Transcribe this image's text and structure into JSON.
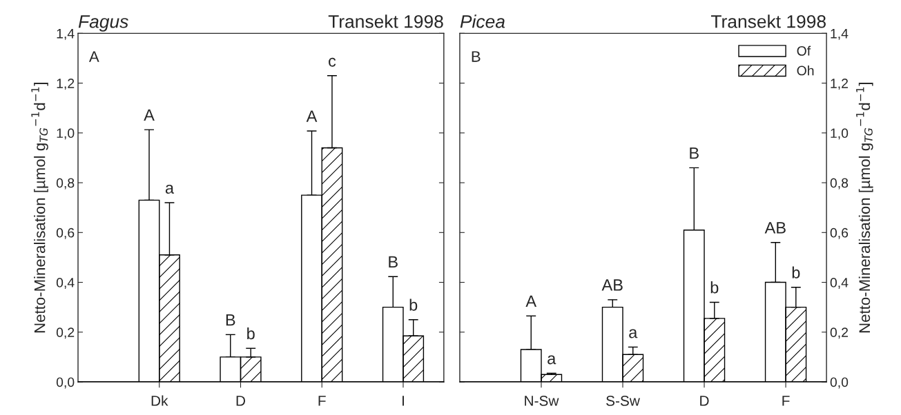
{
  "chart_data": [
    {
      "type": "bar",
      "title": "Fagus",
      "subtitle": "Transekt 1998",
      "ylabel": "Netto-Mineralisation [µmol g$_{TG}$$^{−1}$d$^{−1}$]",
      "categories": [
        "Dk",
        "D",
        "F",
        "I"
      ],
      "series": [
        {
          "color": "#ffffff",
          "values": [
            0.73,
            0.1,
            0.75,
            0.3
          ],
          "errors": [
            [
              0.73,
              1.013
            ],
            [
              0.1,
              0.19
            ],
            [
              0.75,
              1.008
            ],
            [
              0.3,
              0.423
            ]
          ]
        },
        {
          "color": "#000000",
          "values": [
            0.51,
            0.1,
            0.94,
            0.185
          ],
          "errors": [
            [
              0.51,
              0.72
            ],
            [
              0.1,
              0.135
            ],
            [
              0.94,
              1.23
            ],
            [
              0.185,
              0.25
            ]
          ]
        }
      ],
      "ylim": [
        0,
        1.4
      ],
      "yticks": [
        {
          "value": 0,
          "label": "0,0"
        },
        {
          "value": 0.2,
          "label": "0,2"
        },
        {
          "value": 0.4,
          "label": "0,4"
        },
        {
          "value": 0.6,
          "label": "0,6"
        },
        {
          "value": 0.8,
          "label": "0,8"
        },
        {
          "value": 1.0,
          "label": "1,0"
        },
        {
          "value": 1.2,
          "label": "1,2"
        },
        {
          "value": 1.4,
          "label": "1,4"
        }
      ],
      "annotations": [
        "A",
        "A",
        "a",
        "B",
        "b",
        "A",
        "c",
        "B",
        "b"
      ],
      "grid": false,
      "legend": false
    },
    {
      "type": "bar",
      "title": "Picea",
      "subtitle": "Transekt 1998",
      "ylabel": "Netto-Mineralisation [µmol g$_{TG}$$^{−1}$d$^{−1}$]",
      "categories": [
        "N-Sw",
        "S-Sw",
        "D",
        "F"
      ],
      "series": [
        {
          "name": "Of",
          "color": "#ffffff",
          "values": [
            0.13,
            0.3,
            0.61,
            0.4
          ],
          "errors": [
            [
              0.13,
              0.265
            ],
            [
              0.3,
              0.33
            ],
            [
              0.61,
              0.86
            ],
            [
              0.4,
              0.56
            ]
          ]
        },
        {
          "name": "Oh",
          "color": "#000000",
          "values": [
            0.03,
            0.11,
            0.255,
            0.3
          ],
          "errors": [
            [
              0.03,
              0.035
            ],
            [
              0.11,
              0.14
            ],
            [
              0.255,
              0.32
            ],
            [
              0.3,
              0.38
            ]
          ]
        }
      ],
      "ylim": [
        0,
        1.4
      ],
      "yticks": [
        {
          "value": 0,
          "label": "0,0"
        },
        {
          "value": 0.2,
          "label": "0,2"
        },
        {
          "value": 0.4,
          "label": "0,4"
        },
        {
          "value": 0.6,
          "label": "0,6"
        },
        {
          "value": 0.8,
          "label": "0,8"
        },
        {
          "value": 1.0,
          "label": "1,0"
        },
        {
          "value": 1.2,
          "label": "1,2"
        },
        {
          "value": 1.4,
          "label": "1,4"
        }
      ],
      "annotations": [
        "B",
        "A",
        "a",
        "AB",
        "a",
        "B",
        "b",
        "AB",
        "b"
      ],
      "grid": false,
      "legend": "top right"
    }
  ]
}
